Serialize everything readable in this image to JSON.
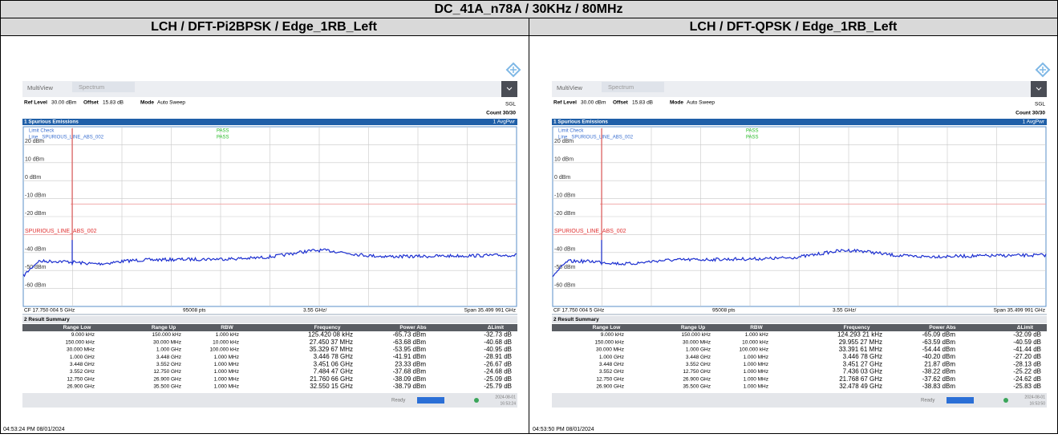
{
  "title": "DC_41A_n78A / 30KHz / 80MHz",
  "panels": [
    {
      "heading": "LCH / DFT-Pi2BPSK / Edge_1RB_Left",
      "tabs": [
        "MultiView",
        "Spectrum"
      ],
      "ref_level_label": "Ref Level",
      "ref_level": "30.00 dBm",
      "offset_label": "Offset",
      "offset": "15.83 dB",
      "mode_label": "Mode",
      "mode": "Auto Sweep",
      "sgl": "SGL",
      "count": "Count 30/30",
      "window1": "1 Spurious Emissions",
      "trace_label": "1 AvgPwr",
      "limit_check": "Limit Check",
      "limit_line": "Line _SPURIOUS_LINE_ABS_002",
      "pass_labels": [
        "PASS",
        "PASS"
      ],
      "y_labels": [
        "20 dBm",
        "10 dBm",
        "0 dBm",
        "-10 dBm",
        "-20 dBm",
        "-40 dBm",
        "-50 dBm",
        "-60 dBm"
      ],
      "limit_name": "SPURIOUS_LINE_ABS_002",
      "cf": "CF 17.750 004 5 GHz",
      "pts": "95008 pts",
      "div": "3.55 GHz/",
      "span": "Span 35.499 991 GHz",
      "window2": "2 Result Summary",
      "columns": [
        "Range Low",
        "Range Up",
        "RBW",
        "Frequency",
        "Power Abs",
        "ΔLimit"
      ],
      "rows": [
        [
          "9.000 kHz",
          "150.000 kHz",
          "1.000 kHz",
          "125.420 08 kHz",
          "-65.73 dBm",
          "-32.73 dB"
        ],
        [
          "150.000 kHz",
          "30.000 MHz",
          "10.000 kHz",
          "27.450 37 MHz",
          "-63.68 dBm",
          "-40.68 dB"
        ],
        [
          "30.000 MHz",
          "1.000 GHz",
          "100.000 kHz",
          "35.329 67 MHz",
          "-53.95 dBm",
          "-40.95 dB"
        ],
        [
          "1.000 GHz",
          "3.448 GHz",
          "1.000 MHz",
          "3.446 78 GHz",
          "-41.91 dBm",
          "-28.91 dB"
        ],
        [
          "3.448 GHz",
          "3.552 GHz",
          "1.000 MHz",
          "3.451 06 GHz",
          "23.33 dBm",
          "-26.67 dB"
        ],
        [
          "3.552 GHz",
          "12.750 GHz",
          "1.000 MHz",
          "7.484 47 GHz",
          "-37.68 dBm",
          "-24.68 dB"
        ],
        [
          "12.750 GHz",
          "26.900 GHz",
          "1.000 MHz",
          "21.760 66 GHz",
          "-38.09 dBm",
          "-25.09 dB"
        ],
        [
          "26.900 GHz",
          "35.500 GHz",
          "1.000 MHz",
          "32.550 15 GHz",
          "-38.79 dBm",
          "-25.79 dB"
        ]
      ],
      "status": "Ready",
      "date": "2024-08-01",
      "time": "16:53:24",
      "timestamp": "04:53:24 PM 08/01/2024"
    },
    {
      "heading": "LCH /  DFT-QPSK / Edge_1RB_Left",
      "tabs": [
        "MultiView",
        "Spectrum"
      ],
      "ref_level_label": "Ref Level",
      "ref_level": "30.00 dBm",
      "offset_label": "Offset",
      "offset": "15.83 dB",
      "mode_label": "Mode",
      "mode": "Auto Sweep",
      "sgl": "SGL",
      "count": "Count 30/30",
      "window1": "1 Spurious Emissions",
      "trace_label": "1 AvgPwr",
      "limit_check": "Limit Check",
      "limit_line": "Line _SPURIOUS_LINE_ABS_002",
      "pass_labels": [
        "PASS",
        "PASS"
      ],
      "y_labels": [
        "20 dBm",
        "10 dBm",
        "0 dBm",
        "-10 dBm",
        "-20 dBm",
        "-40 dBm",
        "-50 dBm",
        "-60 dBm"
      ],
      "limit_name": "SPURIOUS_LINE_ABS_002",
      "cf": "CF 17.750 004 5 GHz",
      "pts": "95008 pts",
      "div": "3.55 GHz/",
      "span": "Span 35.499 991 GHz",
      "window2": "2 Result Summary",
      "columns": [
        "Range Low",
        "Range Up",
        "RBW",
        "Frequency",
        "Power Abs",
        "ΔLimit"
      ],
      "rows": [
        [
          "9.000 kHz",
          "150.000 kHz",
          "1.000 kHz",
          "124.293 21 kHz",
          "-65.09 dBm",
          "-32.09 dB"
        ],
        [
          "150.000 kHz",
          "30.000 MHz",
          "10.000 kHz",
          "29.955 27 MHz",
          "-63.59 dBm",
          "-40.59 dB"
        ],
        [
          "30.000 MHz",
          "1.000 GHz",
          "100.000 kHz",
          "33.391 61 MHz",
          "-54.44 dBm",
          "-41.44 dB"
        ],
        [
          "1.000 GHz",
          "3.448 GHz",
          "1.000 MHz",
          "3.446 78 GHz",
          "-40.20 dBm",
          "-27.20 dB"
        ],
        [
          "3.448 GHz",
          "3.552 GHz",
          "1.000 MHz",
          "3.451 27 GHz",
          "21.87 dBm",
          "-28.13 dB"
        ],
        [
          "3.552 GHz",
          "12.750 GHz",
          "1.000 MHz",
          "7.436 03 GHz",
          "-38.22 dBm",
          "-25.22 dB"
        ],
        [
          "12.750 GHz",
          "26.900 GHz",
          "1.000 MHz",
          "21.768 67 GHz",
          "-37.62 dBm",
          "-24.62 dB"
        ],
        [
          "26.900 GHz",
          "35.500 GHz",
          "1.000 MHz",
          "32.478 49 GHz",
          "-38.83 dBm",
          "-25.83 dB"
        ]
      ],
      "status": "Ready",
      "date": "2024-08-01",
      "time": "16:53:50",
      "timestamp": "04:53:50 PM 08/01/2024"
    }
  ]
}
